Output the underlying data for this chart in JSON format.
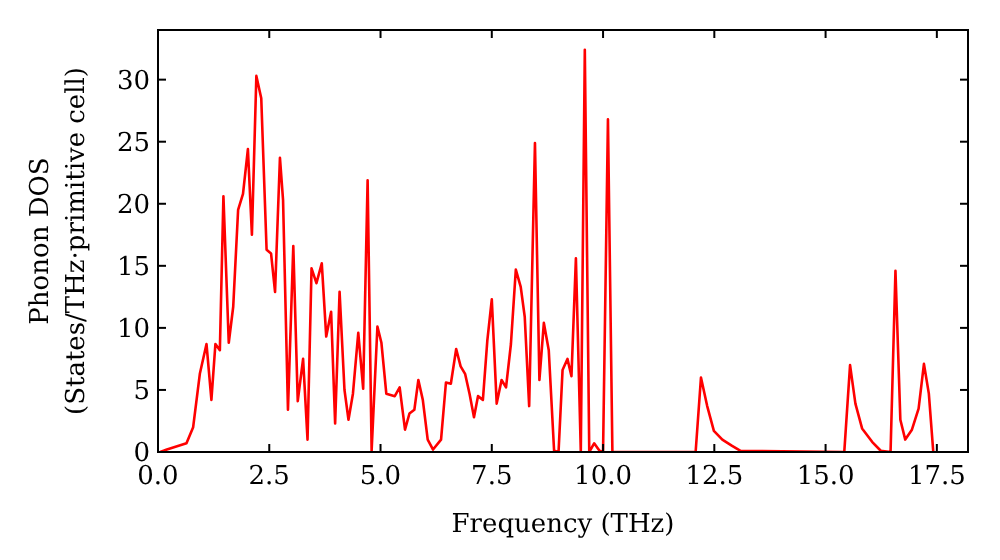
{
  "chart_data": {
    "type": "line",
    "xlabel": "Frequency (THz)",
    "ylabel": "Phonon DOS\n(States/THz·primitive cell)",
    "xlim": [
      0,
      18.2
    ],
    "ylim": [
      0,
      34
    ],
    "xticks": [
      {
        "value": 0,
        "label": "0.0"
      },
      2.5,
      {
        "value": 5,
        "label": "5.0"
      },
      7.5,
      {
        "value": 10,
        "label": "10.0"
      },
      12.5,
      {
        "value": 15,
        "label": "15.0"
      },
      17.5
    ],
    "yticks": [
      0,
      5,
      10,
      15,
      20,
      25,
      30
    ],
    "grid": false,
    "series": [
      {
        "color": "#ff0000",
        "x": [
          0.05,
          0.2,
          0.64,
          0.79,
          0.94,
          1.09,
          1.2,
          1.29,
          1.39,
          1.47,
          1.59,
          1.69,
          1.8,
          1.91,
          2.02,
          2.11,
          2.21,
          2.32,
          2.44,
          2.54,
          2.63,
          2.74,
          2.81,
          2.92,
          3.04,
          3.14,
          3.26,
          3.36,
          3.45,
          3.56,
          3.68,
          3.78,
          3.89,
          3.98,
          4.08,
          4.19,
          4.28,
          4.38,
          4.5,
          4.61,
          4.71,
          4.8,
          4.93,
          5.02,
          5.13,
          5.32,
          5.43,
          5.55,
          5.65,
          5.76,
          5.85,
          5.95,
          6.06,
          6.18,
          6.36,
          6.47,
          6.58,
          6.7,
          6.8,
          6.9,
          7.0,
          7.1,
          7.19,
          7.3,
          7.4,
          7.5,
          7.61,
          7.72,
          7.82,
          7.93,
          8.04,
          8.15,
          8.24,
          8.34,
          8.47,
          8.57,
          8.67,
          8.78,
          8.9,
          9.0,
          9.09,
          9.2,
          9.29,
          9.39,
          9.5,
          9.59,
          9.69,
          9.8,
          9.92,
          10.0,
          10.11,
          10.21,
          12.08,
          12.2,
          12.34,
          12.49,
          12.68,
          12.9,
          13.09,
          15.42,
          15.55,
          15.67,
          15.82,
          16.05,
          16.24,
          16.46,
          16.57,
          16.68,
          16.79,
          16.94,
          17.09,
          17.21,
          17.32,
          17.42
        ],
        "values": [
          0,
          0.2,
          0.7,
          2.0,
          6.3,
          8.7,
          4.2,
          8.7,
          8.2,
          20.6,
          8.8,
          11.7,
          19.5,
          20.8,
          24.4,
          17.5,
          30.3,
          28.5,
          16.3,
          16.0,
          12.9,
          23.7,
          20.3,
          3.4,
          16.6,
          4.1,
          7.5,
          1.0,
          14.8,
          13.6,
          15.2,
          9.3,
          11.3,
          2.3,
          12.9,
          5.0,
          2.6,
          4.7,
          9.6,
          5.1,
          21.9,
          0.1,
          10.1,
          8.8,
          4.7,
          4.5,
          5.2,
          1.8,
          3.1,
          3.4,
          5.8,
          4.2,
          1.0,
          0.2,
          1.0,
          5.6,
          5.5,
          8.3,
          6.9,
          6.3,
          4.7,
          2.8,
          4.5,
          4.2,
          9.0,
          12.3,
          3.9,
          5.8,
          5.2,
          8.7,
          14.7,
          13.3,
          10.9,
          3.7,
          24.9,
          5.8,
          10.4,
          8.2,
          0.1,
          0,
          6.6,
          7.5,
          6.1,
          15.6,
          0,
          32.4,
          0,
          0.7,
          0.1,
          0,
          26.8,
          0,
          0,
          6.0,
          3.7,
          1.7,
          1.0,
          0.5,
          0.1,
          0,
          7.0,
          3.9,
          1.9,
          0.8,
          0.1,
          0,
          14.6,
          2.6,
          1.0,
          1.8,
          3.5,
          7.1,
          4.7,
          0
        ]
      }
    ]
  }
}
